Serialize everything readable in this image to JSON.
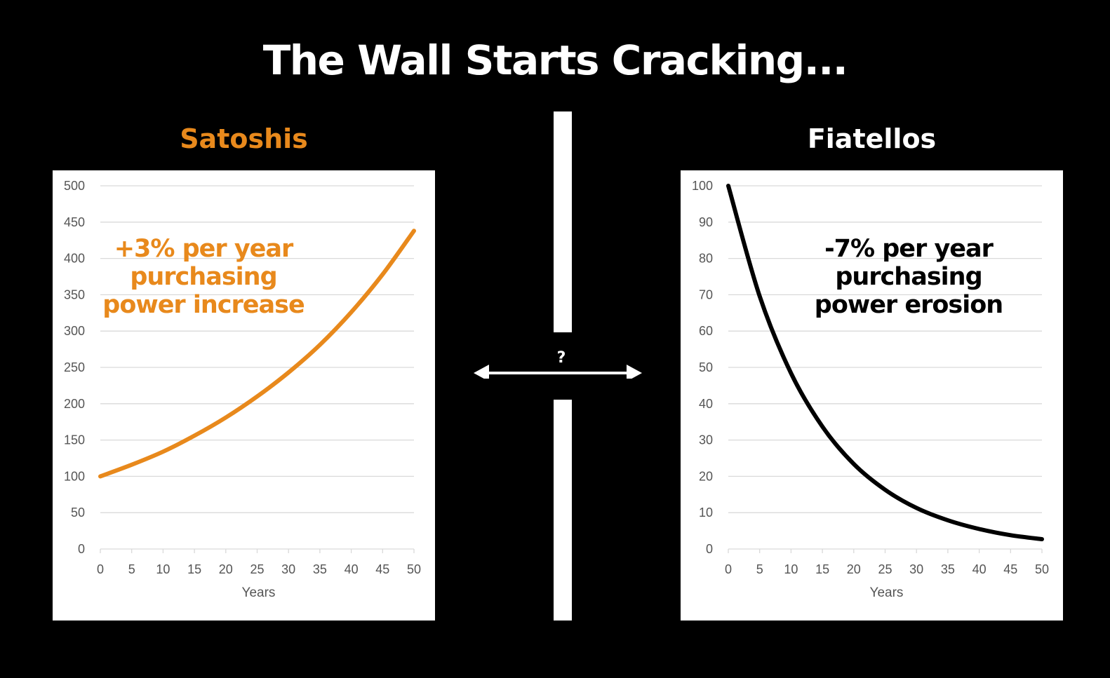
{
  "title": "The Wall Starts Cracking...",
  "divider": {
    "label": "?"
  },
  "colors": {
    "orange": "#E8891C",
    "black": "#000000",
    "white": "#FFFFFF",
    "grid": "#D9D9D9"
  },
  "chart_data": [
    {
      "type": "line",
      "title": "Satoshis",
      "annotation": [
        "+3% per year",
        "purchasing",
        "power increase"
      ],
      "xlabel": "Years",
      "ylabel": "",
      "xlim": [
        0,
        50
      ],
      "ylim": [
        0,
        500
      ],
      "xticks": [
        0,
        5,
        10,
        15,
        20,
        25,
        30,
        35,
        40,
        45,
        50
      ],
      "yticks": [
        0,
        50,
        100,
        150,
        200,
        250,
        300,
        350,
        400,
        450,
        500
      ],
      "grid": true,
      "color": "#E8891C",
      "x": [
        0,
        5,
        10,
        15,
        20,
        25,
        30,
        35,
        40,
        45,
        50
      ],
      "y": [
        100,
        116,
        134,
        156,
        181,
        210,
        243,
        281,
        326,
        378,
        438
      ]
    },
    {
      "type": "line",
      "title": "Fiatellos",
      "annotation": [
        "-7% per year",
        "purchasing",
        "power erosion"
      ],
      "xlabel": "Years",
      "ylabel": "",
      "xlim": [
        0,
        50
      ],
      "ylim": [
        0,
        100
      ],
      "xticks": [
        0,
        5,
        10,
        15,
        20,
        25,
        30,
        35,
        40,
        45,
        50
      ],
      "yticks": [
        0,
        10,
        20,
        30,
        40,
        50,
        60,
        70,
        80,
        90,
        100
      ],
      "grid": true,
      "color": "#000000",
      "x": [
        0,
        5,
        10,
        15,
        20,
        25,
        30,
        35,
        40,
        45,
        50
      ],
      "y": [
        100,
        69.6,
        48.4,
        33.7,
        23.4,
        16.3,
        11.3,
        7.9,
        5.5,
        3.8,
        2.7
      ]
    }
  ]
}
